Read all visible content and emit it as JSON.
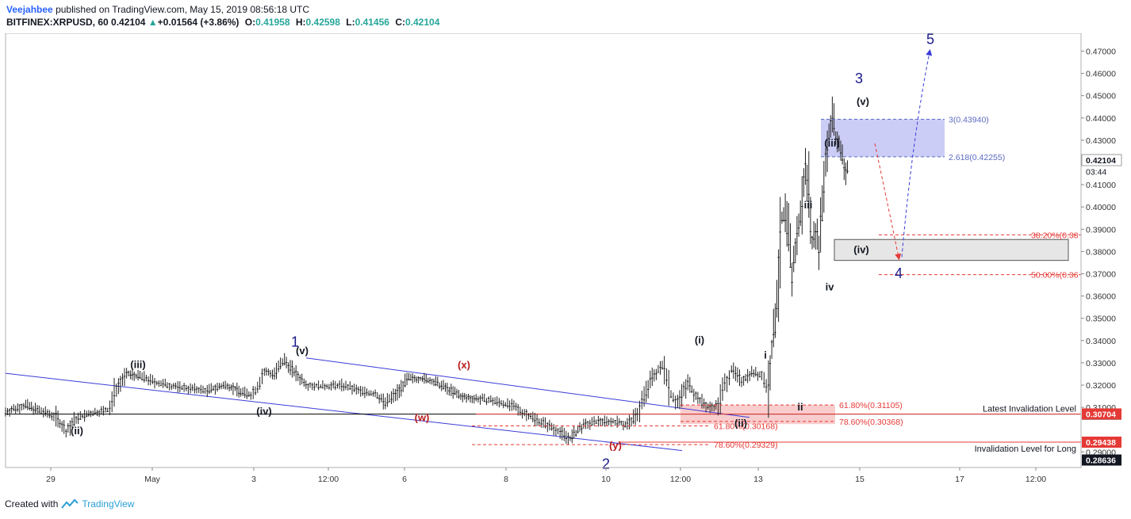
{
  "header": {
    "author": "Veejahbee",
    "published": "published on TradingView.com, May 15, 2019 08:56:18 UTC",
    "symbol": "BITFINEX:XRPUSD, 60",
    "last": "0.42104",
    "change_arrow": "▲",
    "change": "+0.01564 (+3.86%)",
    "o_label": "O:",
    "o": "0.41958",
    "h_label": "H:",
    "h": "0.42598",
    "l_label": "L:",
    "l": "0.41456",
    "c_label": "C:",
    "c": "0.42104"
  },
  "footer": {
    "created_with": "Created with",
    "brand": "TradingView",
    "logo_icon": "tradingview-logo-icon"
  },
  "colors": {
    "up": "#26a69a",
    "wave_blue": "#1a1a8c",
    "channel": "#3b3bd9",
    "red": "#e53935",
    "fib_blue": "#5c6bc0"
  },
  "chart_data": {
    "type": "candlestick",
    "symbol": "BITFINEX:XRPUSD",
    "interval": "60",
    "x_ticks": [
      "29",
      "May",
      "3",
      "12:00",
      "6",
      "8",
      "10",
      "12:00",
      "13",
      "15",
      "17",
      "12:00"
    ],
    "y_ticks": [
      "0.47000",
      "0.46000",
      "0.45000",
      "0.44000",
      "0.43000",
      "0.41000",
      "0.40000",
      "0.39000",
      "0.38000",
      "0.37000",
      "0.36000",
      "0.35000",
      "0.34000",
      "0.33000",
      "0.32000",
      "0.31000",
      "0.29000"
    ],
    "ylim": [
      0.283,
      0.478
    ],
    "price_labels": [
      {
        "text": "0.42104",
        "value": 0.42104,
        "style": "current"
      },
      {
        "text": "03:44",
        "value": 0.4159,
        "style": "countdown"
      },
      {
        "text": "0.30696",
        "value": 0.30696,
        "style": "dark"
      },
      {
        "text": "0.30704",
        "value": 0.30704,
        "style": "red"
      },
      {
        "text": "0.29438",
        "value": 0.29438,
        "style": "red"
      },
      {
        "text": "0.28636",
        "value": 0.28636,
        "style": "dark"
      }
    ],
    "horizontal_lines": [
      {
        "value": 0.30704,
        "label": "Latest Invalidation Level",
        "color": "#e53935"
      },
      {
        "value": 0.30696,
        "label": "",
        "color": "#000000"
      },
      {
        "value": 0.29438,
        "label": "Invalidation Level for Long",
        "color": "#e53935"
      }
    ],
    "fib_levels": [
      {
        "label": "3(0.43940)",
        "value": 0.4394,
        "color": "#5c6bc0"
      },
      {
        "label": "2.618(0.42255)",
        "value": 0.42255,
        "color": "#5c6bc0"
      },
      {
        "label": "38.20%(0.38",
        "value": 0.3875,
        "color": "#e53935"
      },
      {
        "label": "50.00%(0.36",
        "value": 0.3696,
        "color": "#e53935"
      },
      {
        "label": "61.80%(0.31105)",
        "value": 0.31105,
        "color": "#e53935"
      },
      {
        "label": "78.60%(0.30368)",
        "value": 0.30368,
        "color": "#e53935"
      },
      {
        "label": "61.80%(0.30168)",
        "value": 0.30168,
        "color": "#e53935"
      },
      {
        "label": "78.60%(0.29329)",
        "value": 0.29329,
        "color": "#e53935"
      }
    ],
    "wave_labels": [
      {
        "text": "(ii)",
        "color": "#131722"
      },
      {
        "text": "(iii)",
        "color": "#131722"
      },
      {
        "text": "(iv)",
        "color": "#131722"
      },
      {
        "text": "1",
        "color": "#1a1a8c"
      },
      {
        "text": "(v)",
        "color": "#131722"
      },
      {
        "text": "(w)",
        "color": "#b71c1c"
      },
      {
        "text": "(x)",
        "color": "#b71c1c"
      },
      {
        "text": "(y)",
        "color": "#b71c1c"
      },
      {
        "text": "2",
        "color": "#1a1a8c"
      },
      {
        "text": "(i)",
        "color": "#131722"
      },
      {
        "text": "(ii)",
        "color": "#131722"
      },
      {
        "text": "i",
        "color": "#131722"
      },
      {
        "text": "ii",
        "color": "#131722"
      },
      {
        "text": "iii",
        "color": "#131722"
      },
      {
        "text": "iv",
        "color": "#131722"
      },
      {
        "text": "(iii)",
        "color": "#131722"
      },
      {
        "text": "3",
        "color": "#1a1a8c"
      },
      {
        "text": "(v)",
        "color": "#131722"
      },
      {
        "text": "(iv)",
        "color": "#131722"
      },
      {
        "text": "4",
        "color": "#1a1a8c"
      },
      {
        "text": "5",
        "color": "#1a1a8c"
      }
    ],
    "price_path": [
      [
        0,
        0.308
      ],
      [
        6,
        0.311
      ],
      [
        10,
        0.3085
      ],
      [
        15,
        0.306
      ],
      [
        18,
        0.299
      ],
      [
        21,
        0.305
      ],
      [
        26,
        0.3075
      ],
      [
        31,
        0.309
      ],
      [
        33,
        0.319
      ],
      [
        36,
        0.325
      ],
      [
        40,
        0.324
      ],
      [
        45,
        0.321
      ],
      [
        50,
        0.3195
      ],
      [
        55,
        0.3185
      ],
      [
        60,
        0.3175
      ],
      [
        63,
        0.319
      ],
      [
        66,
        0.32
      ],
      [
        70,
        0.317
      ],
      [
        73,
        0.3155
      ],
      [
        75,
        0.319
      ],
      [
        77,
        0.326
      ],
      [
        80,
        0.325
      ],
      [
        83,
        0.331
      ],
      [
        87,
        0.324
      ],
      [
        90,
        0.32
      ],
      [
        95,
        0.3195
      ],
      [
        100,
        0.32
      ],
      [
        105,
        0.3175
      ],
      [
        110,
        0.316
      ],
      [
        113,
        0.312
      ],
      [
        116,
        0.316
      ],
      [
        120,
        0.323
      ],
      [
        124,
        0.323
      ],
      [
        128,
        0.321
      ],
      [
        132,
        0.318
      ],
      [
        136,
        0.3145
      ],
      [
        140,
        0.314
      ],
      [
        145,
        0.313
      ],
      [
        150,
        0.311
      ],
      [
        155,
        0.307
      ],
      [
        160,
        0.303
      ],
      [
        165,
        0.299
      ],
      [
        168,
        0.296
      ],
      [
        172,
        0.302
      ],
      [
        177,
        0.304
      ],
      [
        182,
        0.3035
      ],
      [
        185,
        0.302
      ],
      [
        188,
        0.307
      ],
      [
        190,
        0.315
      ],
      [
        193,
        0.325
      ],
      [
        196,
        0.329
      ],
      [
        198,
        0.316
      ],
      [
        200,
        0.312
      ],
      [
        203,
        0.321
      ],
      [
        206,
        0.314
      ],
      [
        209,
        0.31
      ],
      [
        212,
        0.311
      ],
      [
        214,
        0.32
      ],
      [
        216,
        0.327
      ],
      [
        219,
        0.322
      ],
      [
        222,
        0.326
      ],
      [
        225,
        0.324
      ],
      [
        227,
        0.318
      ],
      [
        228,
        0.336
      ],
      [
        229,
        0.348
      ],
      [
        230,
        0.37
      ],
      [
        231,
        0.394
      ],
      [
        232,
        0.397
      ],
      [
        233,
        0.387
      ],
      [
        234,
        0.37
      ],
      [
        235,
        0.38
      ],
      [
        236,
        0.392
      ],
      [
        237,
        0.401
      ],
      [
        238,
        0.418
      ],
      [
        239,
        0.408
      ],
      [
        240,
        0.385
      ],
      [
        241,
        0.39
      ],
      [
        242,
        0.382
      ],
      [
        243,
        0.4
      ],
      [
        244,
        0.42
      ],
      [
        245,
        0.433
      ],
      [
        246,
        0.442
      ],
      [
        247,
        0.431
      ],
      [
        248,
        0.428
      ],
      [
        249,
        0.422
      ],
      [
        250,
        0.415
      ],
      [
        251,
        0.421
      ]
    ],
    "x_range": [
      0,
      320
    ]
  }
}
